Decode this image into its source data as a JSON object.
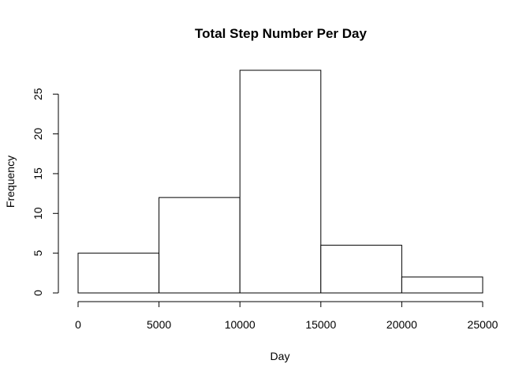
{
  "chart_data": {
    "type": "bar",
    "title": "Total Step Number Per Day",
    "xlabel": "Day",
    "ylabel": "Frequency",
    "bins": [
      {
        "start": 0,
        "end": 5000,
        "count": 5
      },
      {
        "start": 5000,
        "end": 10000,
        "count": 12
      },
      {
        "start": 10000,
        "end": 15000,
        "count": 28
      },
      {
        "start": 15000,
        "end": 20000,
        "count": 6
      },
      {
        "start": 20000,
        "end": 25000,
        "count": 2
      }
    ],
    "xlim": [
      0,
      25000
    ],
    "ylim": [
      0,
      28
    ],
    "x_ticks": [
      "0",
      "5000",
      "10000",
      "15000",
      "20000",
      "25000"
    ],
    "y_ticks": [
      "0",
      "5",
      "10",
      "15",
      "20",
      "25"
    ],
    "bar_fill": "#ffffff",
    "bar_stroke": "#000000",
    "grid": false,
    "legend": "none"
  }
}
